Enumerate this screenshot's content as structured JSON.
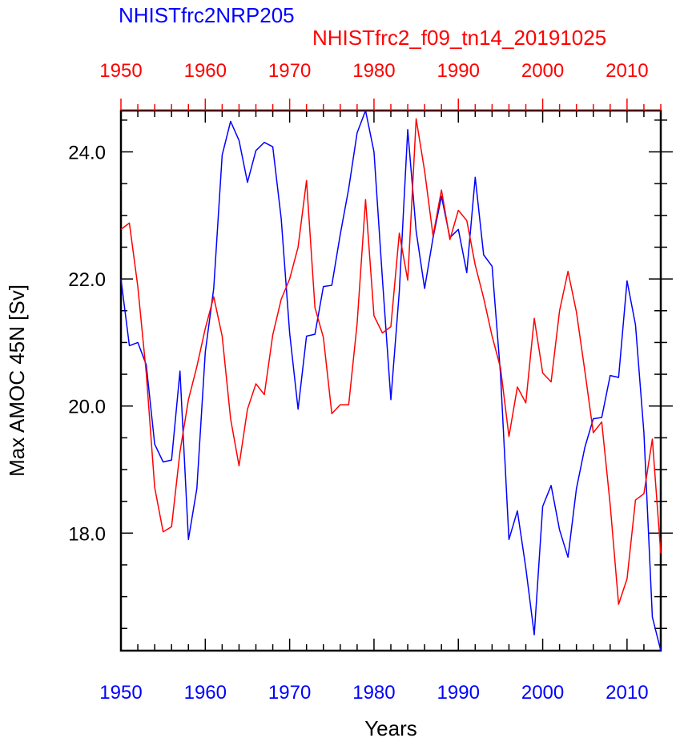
{
  "chart_data": {
    "type": "line",
    "xlabel": "Years",
    "ylabel": "Max AMOC 45N [Sv]",
    "xlim": [
      1950,
      2014
    ],
    "ylim": [
      16.15,
      24.65
    ],
    "x_ticks": [
      "1950",
      "1960",
      "1970",
      "1980",
      "1990",
      "2000",
      "2010"
    ],
    "y_ticks": [
      "18.0",
      "20.0",
      "22.0",
      "24.0"
    ],
    "grid": false,
    "colors": {
      "blue": "#0000ff",
      "red": "#ff0000"
    },
    "series": [
      {
        "name": "NHISTfrc2NRP205",
        "color": "#0000ff",
        "x_start": 1950,
        "values": [
          22.0,
          20.95,
          21.0,
          20.65,
          19.4,
          19.12,
          19.15,
          20.55,
          17.9,
          18.7,
          20.85,
          21.85,
          23.95,
          24.48,
          24.18,
          23.52,
          24.02,
          24.15,
          24.08,
          22.95,
          21.15,
          19.95,
          21.1,
          21.13,
          21.88,
          21.9,
          22.7,
          23.42,
          24.3,
          24.65,
          24.0,
          22.0,
          20.1,
          21.8,
          24.35,
          22.75,
          21.85,
          22.65,
          23.3,
          22.65,
          22.78,
          22.1,
          23.6,
          22.38,
          22.2,
          20.5,
          17.9,
          18.35,
          17.45,
          16.4,
          18.42,
          18.75,
          18.05,
          17.62,
          18.7,
          19.35,
          19.8,
          19.82,
          20.48,
          20.45,
          21.97,
          21.28,
          19.58,
          16.68,
          16.15
        ]
      },
      {
        "name": "NHISTfrc2_f09_tn14_20191025",
        "color": "#ff0000",
        "x_start": 1950,
        "values": [
          22.78,
          22.88,
          21.88,
          20.52,
          18.72,
          18.02,
          18.1,
          19.28,
          20.1,
          20.62,
          21.22,
          21.72,
          21.1,
          19.8,
          19.06,
          19.95,
          20.35,
          20.18,
          21.12,
          21.68,
          22.0,
          22.5,
          23.55,
          21.55,
          21.08,
          19.88,
          20.02,
          20.02,
          21.3,
          23.25,
          21.42,
          21.15,
          21.25,
          22.72,
          21.98,
          24.52,
          23.7,
          22.68,
          23.4,
          22.62,
          23.08,
          22.92,
          22.22,
          21.7,
          21.1,
          20.6,
          19.52,
          20.3,
          20.05,
          21.38,
          20.52,
          20.38,
          21.5,
          22.12,
          21.48,
          20.55,
          19.58,
          19.75,
          18.45,
          16.88,
          17.28,
          18.52,
          18.62,
          19.48,
          17.68
        ]
      }
    ]
  }
}
